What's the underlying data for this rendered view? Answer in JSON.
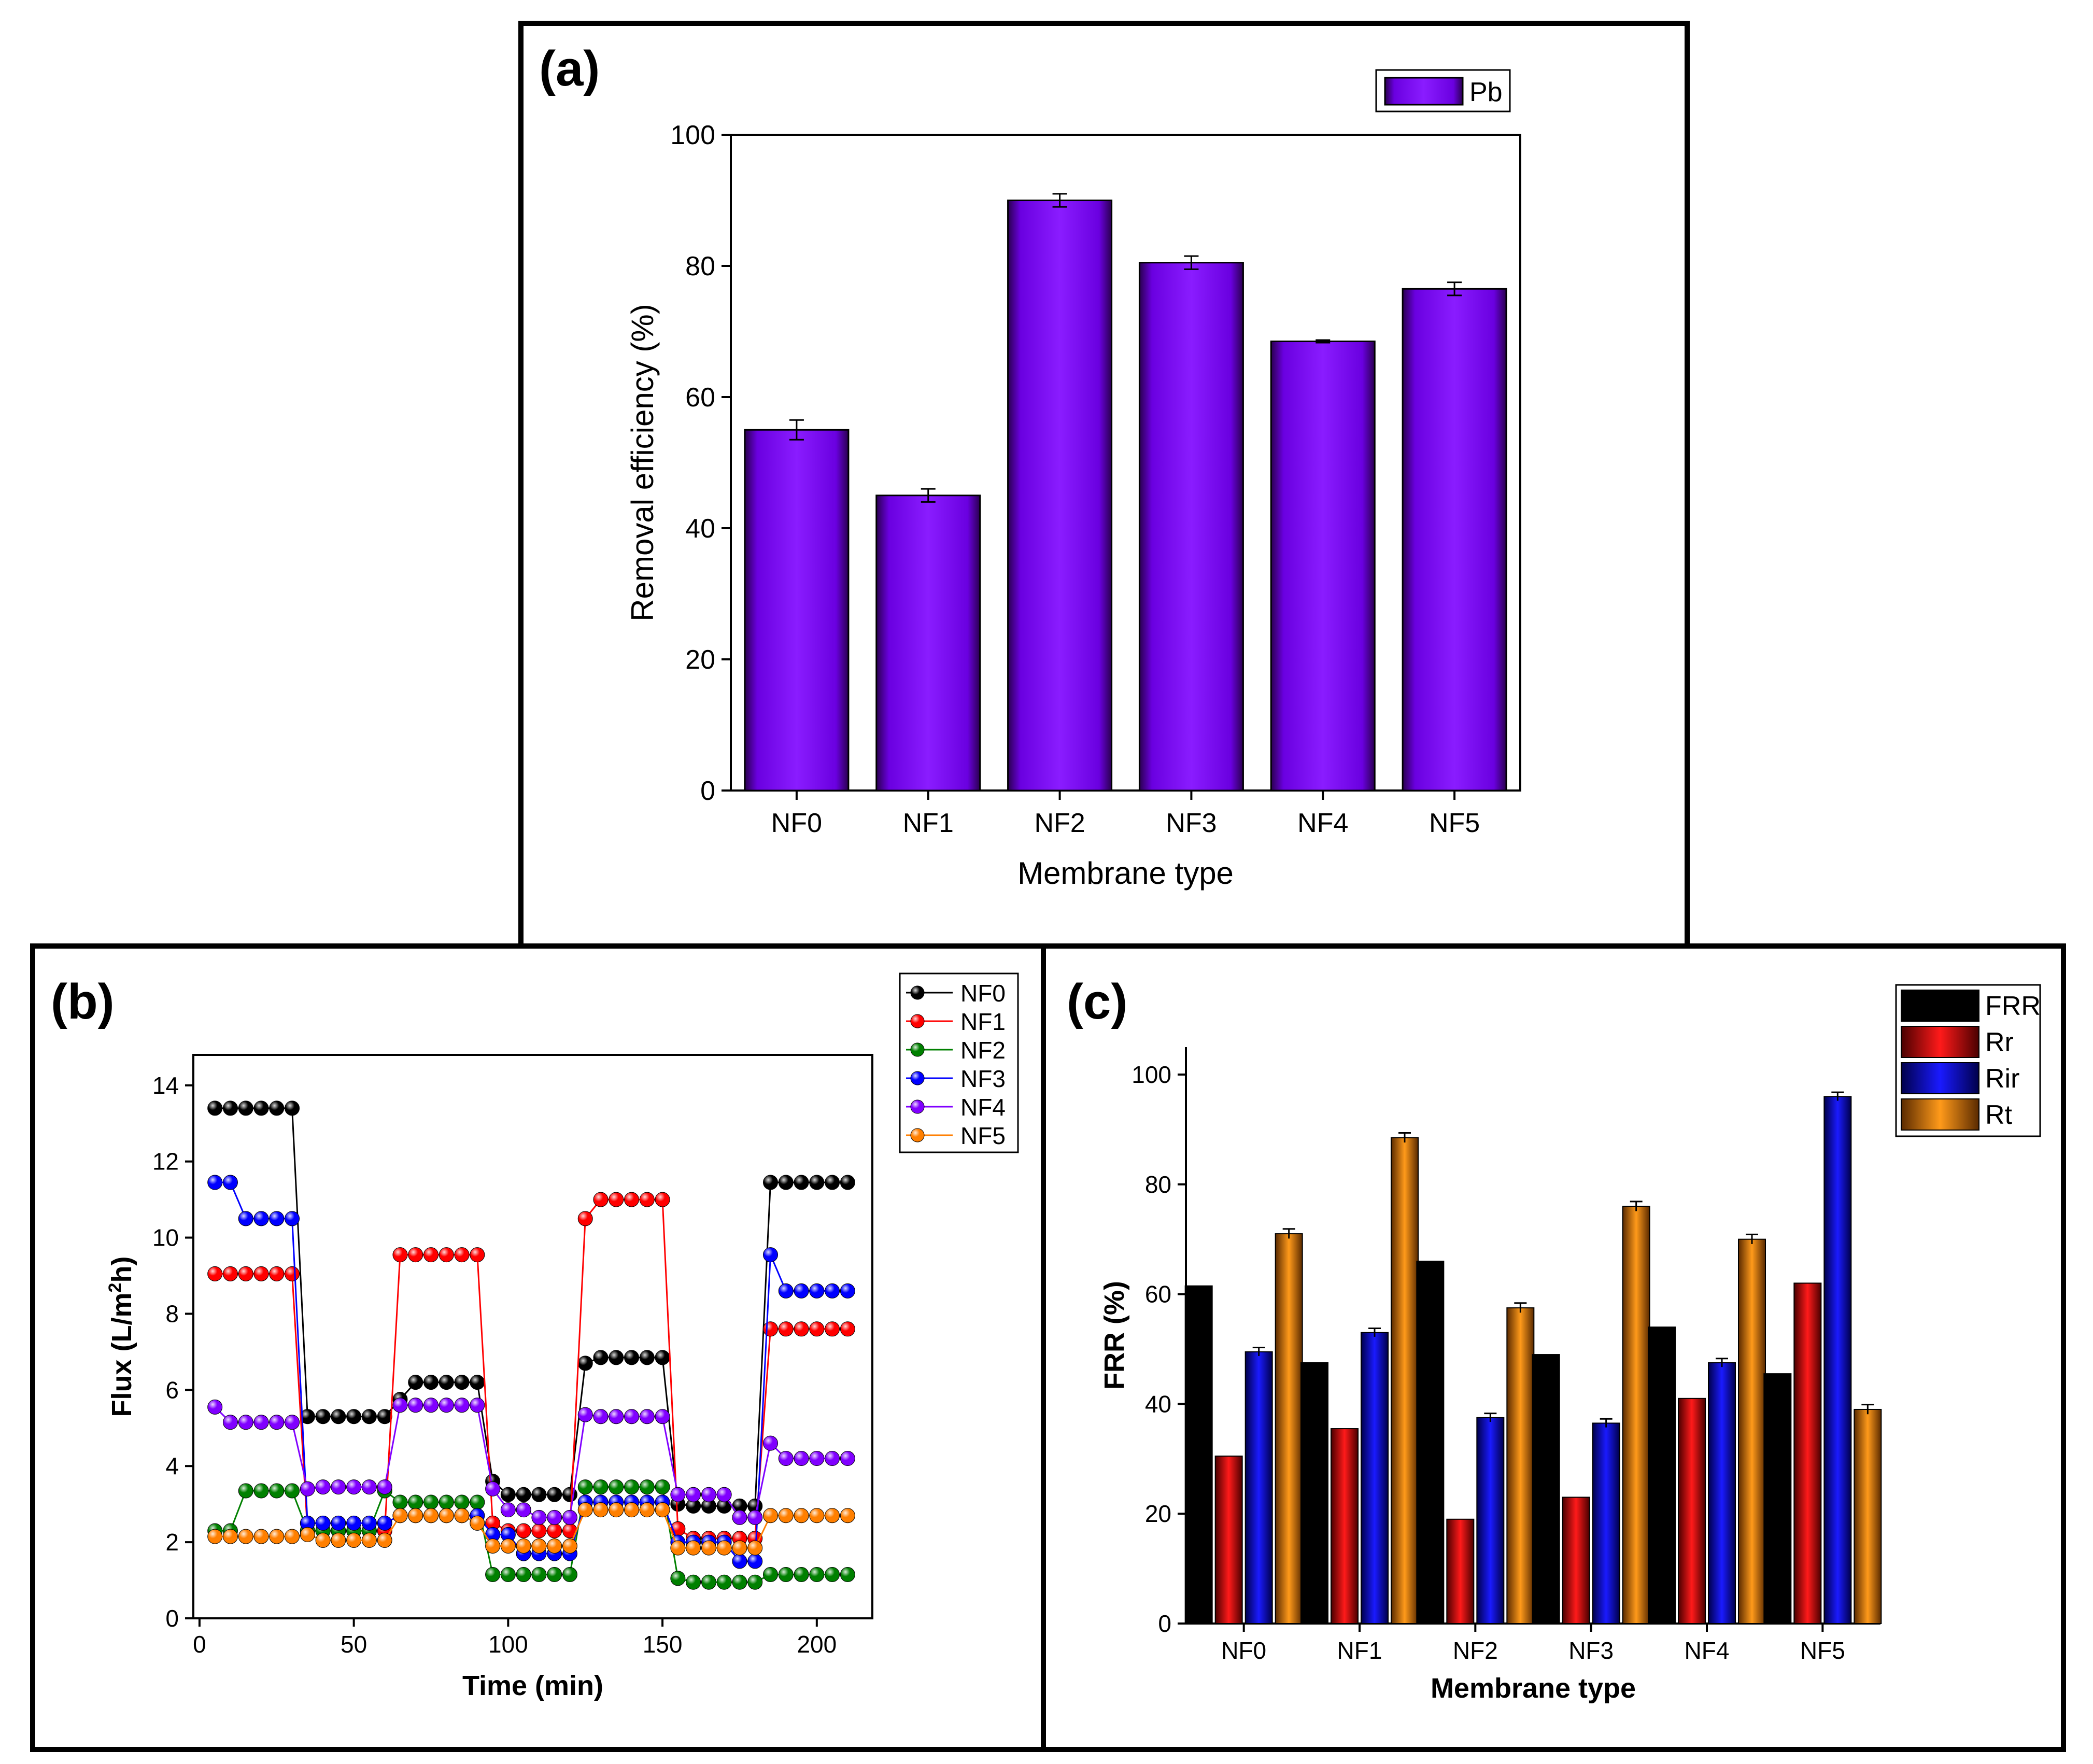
{
  "colors": {
    "bar_a": "#7a00ff",
    "series_b": [
      "#000000",
      "#ff0000",
      "#008000",
      "#0000ff",
      "#8000ff",
      "#ff7f00"
    ],
    "series_c": [
      "#000000",
      "#e00000",
      "#0000e0",
      "#ff8c00"
    ]
  },
  "chart_data": [
    {
      "panel": "(a)",
      "type": "bar",
      "categories": [
        "NF0",
        "NF1",
        "NF2",
        "NF3",
        "NF4",
        "NF5"
      ],
      "series": [
        {
          "name": "Pb",
          "values": [
            55.0,
            45.0,
            90.0,
            80.5,
            68.5,
            76.5
          ],
          "errors": [
            1.5,
            1.0,
            1.0,
            1.0,
            0.2,
            1.0
          ]
        }
      ],
      "xlabel": "Membrane type",
      "ylabel": "Removal efficiency (%)",
      "ylim": [
        0,
        100
      ],
      "yticks": [
        0,
        20,
        40,
        60,
        80,
        100
      ],
      "legend": "top-right"
    },
    {
      "panel": "(b)",
      "type": "line",
      "xlabel": "Time (min)",
      "ylabel": "Flux (L/m²h)",
      "ylabel_main": "Flux (L/m",
      "ylabel_sup": "2",
      "ylabel_tail": "h)",
      "xlim": [
        -2,
        218
      ],
      "ylim": [
        0,
        14.8
      ],
      "xticks": [
        0,
        50,
        100,
        150,
        200
      ],
      "yticks": [
        0,
        2,
        4,
        6,
        8,
        10,
        12,
        14
      ],
      "legend": "top-right",
      "series": [
        {
          "name": "NF0",
          "x": [
            5,
            10,
            15,
            20,
            25,
            30,
            35,
            40,
            45,
            50,
            55,
            60,
            65,
            70,
            75,
            80,
            85,
            90,
            95,
            100,
            105,
            110,
            115,
            120,
            125,
            130,
            135,
            140,
            145,
            150,
            155,
            160,
            165,
            170,
            175,
            180,
            185,
            190,
            195,
            200,
            205,
            210
          ],
          "y": [
            13.4,
            13.4,
            13.4,
            13.4,
            13.4,
            13.4,
            5.3,
            5.3,
            5.3,
            5.3,
            5.3,
            5.3,
            5.75,
            6.2,
            6.2,
            6.2,
            6.2,
            6.2,
            3.6,
            3.25,
            3.25,
            3.25,
            3.25,
            3.25,
            6.7,
            6.85,
            6.85,
            6.85,
            6.85,
            6.85,
            3.0,
            2.95,
            2.95,
            2.95,
            2.95,
            2.95,
            11.45,
            11.45,
            11.45,
            11.45,
            11.45,
            11.45
          ]
        },
        {
          "name": "NF1",
          "x": [
            5,
            10,
            15,
            20,
            25,
            30,
            35,
            40,
            45,
            50,
            55,
            60,
            65,
            70,
            75,
            80,
            85,
            90,
            95,
            100,
            105,
            110,
            115,
            120,
            125,
            130,
            135,
            140,
            145,
            150,
            155,
            160,
            165,
            170,
            175,
            180,
            185,
            190,
            195,
            200,
            205,
            210
          ],
          "y": [
            9.05,
            9.05,
            9.05,
            9.05,
            9.05,
            9.05,
            2.3,
            2.3,
            2.3,
            2.3,
            2.3,
            2.3,
            9.55,
            9.55,
            9.55,
            9.55,
            9.55,
            9.55,
            2.5,
            2.3,
            2.3,
            2.3,
            2.3,
            2.3,
            10.5,
            11.0,
            11.0,
            11.0,
            11.0,
            11.0,
            2.35,
            2.1,
            2.1,
            2.1,
            2.1,
            2.1,
            7.6,
            7.6,
            7.6,
            7.6,
            7.6,
            7.6
          ]
        },
        {
          "name": "NF2",
          "x": [
            5,
            10,
            15,
            20,
            25,
            30,
            35,
            40,
            45,
            50,
            55,
            60,
            65,
            70,
            75,
            80,
            85,
            90,
            95,
            100,
            105,
            110,
            115,
            120,
            125,
            130,
            135,
            140,
            145,
            150,
            155,
            160,
            165,
            170,
            175,
            180,
            185,
            190,
            195,
            200,
            205,
            210
          ],
          "y": [
            2.3,
            2.3,
            3.35,
            3.35,
            3.35,
            3.35,
            2.3,
            2.3,
            2.3,
            2.3,
            2.3,
            3.35,
            3.05,
            3.05,
            3.05,
            3.05,
            3.05,
            3.05,
            1.15,
            1.15,
            1.15,
            1.15,
            1.15,
            1.15,
            3.45,
            3.45,
            3.45,
            3.45,
            3.45,
            3.45,
            1.05,
            0.95,
            0.95,
            0.95,
            0.95,
            0.95,
            1.15,
            1.15,
            1.15,
            1.15,
            1.15,
            1.15
          ]
        },
        {
          "name": "NF3",
          "x": [
            5,
            10,
            15,
            20,
            25,
            30,
            35,
            40,
            45,
            50,
            55,
            60,
            65,
            70,
            75,
            80,
            85,
            90,
            95,
            100,
            105,
            110,
            115,
            120,
            125,
            130,
            135,
            140,
            145,
            150,
            155,
            160,
            165,
            170,
            175,
            180,
            185,
            190,
            195,
            200,
            205,
            210
          ],
          "y": [
            11.45,
            11.45,
            10.5,
            10.5,
            10.5,
            10.5,
            2.5,
            2.5,
            2.5,
            2.5,
            2.5,
            2.5,
            2.7,
            2.7,
            2.7,
            2.7,
            2.7,
            2.7,
            2.2,
            2.2,
            1.7,
            1.7,
            1.7,
            1.7,
            3.05,
            3.05,
            3.05,
            3.05,
            3.05,
            3.05,
            2.0,
            2.0,
            2.0,
            2.0,
            1.5,
            1.5,
            9.55,
            8.6,
            8.6,
            8.6,
            8.6,
            8.6
          ]
        },
        {
          "name": "NF4",
          "x": [
            5,
            10,
            15,
            20,
            25,
            30,
            35,
            40,
            45,
            50,
            55,
            60,
            65,
            70,
            75,
            80,
            85,
            90,
            95,
            100,
            105,
            110,
            115,
            120,
            125,
            130,
            135,
            140,
            145,
            150,
            155,
            160,
            165,
            170,
            175,
            180,
            185,
            190,
            195,
            200,
            205,
            210
          ],
          "y": [
            5.55,
            5.15,
            5.15,
            5.15,
            5.15,
            5.15,
            3.4,
            3.45,
            3.45,
            3.45,
            3.45,
            3.45,
            5.6,
            5.6,
            5.6,
            5.6,
            5.6,
            5.6,
            3.4,
            2.85,
            2.85,
            2.65,
            2.65,
            2.65,
            5.35,
            5.3,
            5.3,
            5.3,
            5.3,
            5.3,
            3.25,
            3.25,
            3.25,
            3.25,
            2.65,
            2.65,
            4.6,
            4.2,
            4.2,
            4.2,
            4.2,
            4.2
          ]
        },
        {
          "name": "NF5",
          "x": [
            5,
            10,
            15,
            20,
            25,
            30,
            35,
            40,
            45,
            50,
            55,
            60,
            65,
            70,
            75,
            80,
            85,
            90,
            95,
            100,
            105,
            110,
            115,
            120,
            125,
            130,
            135,
            140,
            145,
            150,
            155,
            160,
            165,
            170,
            175,
            180,
            185,
            190,
            195,
            200,
            205,
            210
          ],
          "y": [
            2.15,
            2.15,
            2.15,
            2.15,
            2.15,
            2.15,
            2.2,
            2.05,
            2.05,
            2.05,
            2.05,
            2.05,
            2.7,
            2.7,
            2.7,
            2.7,
            2.7,
            2.5,
            1.9,
            1.9,
            1.9,
            1.9,
            1.9,
            1.9,
            2.85,
            2.85,
            2.85,
            2.85,
            2.85,
            2.85,
            1.85,
            1.85,
            1.85,
            1.85,
            1.85,
            1.85,
            2.7,
            2.7,
            2.7,
            2.7,
            2.7,
            2.7
          ]
        }
      ]
    },
    {
      "panel": "(c)",
      "type": "bar",
      "categories": [
        "NF0",
        "NF1",
        "NF2",
        "NF3",
        "NF4",
        "NF5"
      ],
      "series": [
        {
          "name": "FRR",
          "values": [
            61.5,
            47.5,
            66.0,
            49.0,
            54.0,
            45.5
          ],
          "errors": [
            0,
            0,
            0,
            0,
            0,
            0
          ]
        },
        {
          "name": "Rr",
          "values": [
            30.5,
            35.5,
            19.0,
            23.0,
            41.0,
            62.0
          ],
          "errors": [
            0,
            0,
            0,
            0,
            0,
            0
          ]
        },
        {
          "name": "Rir",
          "values": [
            49.5,
            53.0,
            37.5,
            36.5,
            47.5,
            96.0
          ],
          "errors": [
            0.4,
            0.4,
            0.4,
            0.4,
            0.4,
            0.4
          ]
        },
        {
          "name": "Rt",
          "values": [
            71.0,
            88.5,
            57.5,
            76.0,
            70.0,
            39.0
          ],
          "errors": [
            0.5,
            0.5,
            0.5,
            0.5,
            0.5,
            0.5
          ]
        }
      ],
      "xlabel": "Membrane type",
      "ylabel": "FRR (%)",
      "ylim": [
        0,
        105
      ],
      "yticks": [
        0,
        20,
        40,
        60,
        80,
        100
      ],
      "legend": "top-right"
    }
  ]
}
